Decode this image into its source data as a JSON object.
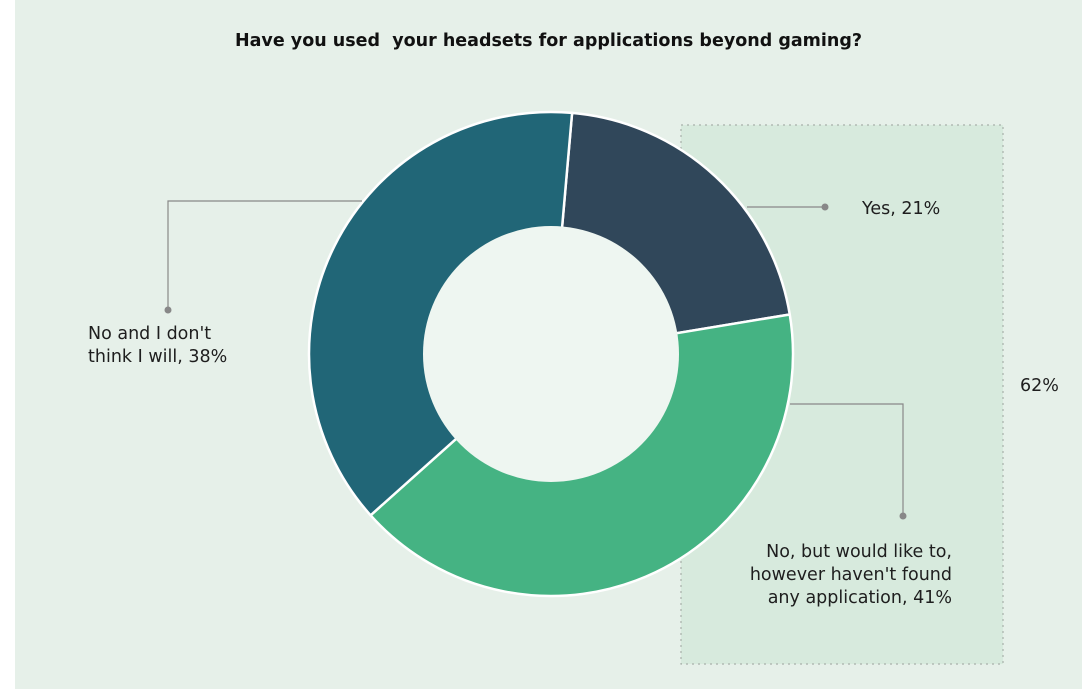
{
  "chart_data": {
    "type": "pie",
    "title": "Have you used  your headsets for applications beyond gaming?",
    "categories": [
      "Yes",
      "No, but would like to, however haven't found any application",
      "No and I don't think I will"
    ],
    "values": [
      21,
      41,
      38
    ],
    "colors": [
      "#30475a",
      "#45b383",
      "#216677"
    ],
    "donut": true,
    "data_labels": {
      "yes": "Yes, 21%",
      "would_line1": "No, but would like to,",
      "would_line2": "however haven't found",
      "would_line3": "any application, 41%",
      "no_line1": "No and I don't",
      "no_line2": "think I will, 38%"
    },
    "group_annotation": {
      "label": "62%",
      "covers": [
        "Yes",
        "No, but would like to, however haven't found any application"
      ]
    }
  },
  "style": {
    "background": "#e6f0e9",
    "highlight_fill": "#d7eadd",
    "leader_color": "#888888",
    "center_fill": "#eef6f1"
  }
}
